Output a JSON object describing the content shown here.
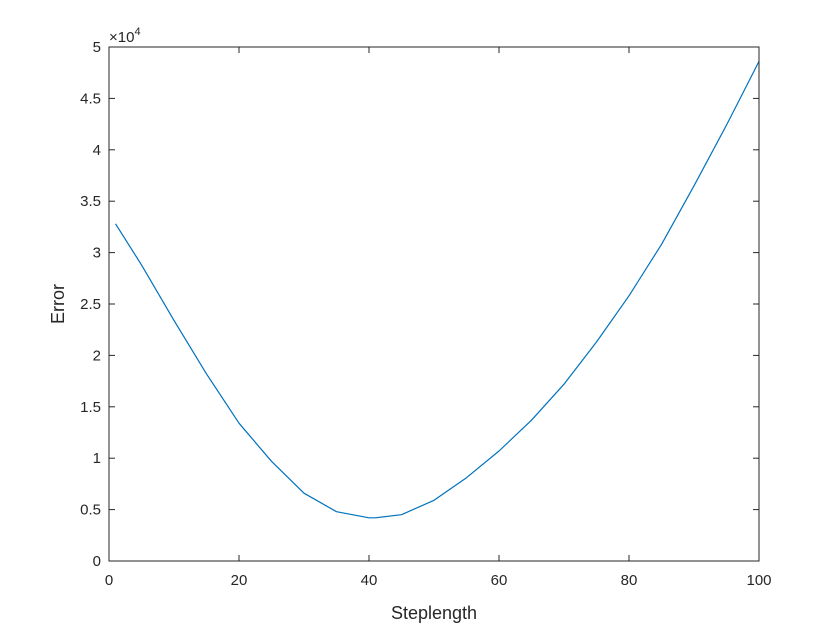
{
  "chart_data": {
    "type": "line",
    "title": "",
    "xlabel": "Steplength",
    "ylabel": "Error",
    "xlim": [
      0,
      100
    ],
    "ylim": [
      0,
      5
    ],
    "y_multiplier": "×10",
    "y_multiplier_exponent": "4",
    "xticks": [
      0,
      20,
      40,
      60,
      80,
      100
    ],
    "xtick_labels": [
      "0",
      "20",
      "40",
      "60",
      "80",
      "100"
    ],
    "yticks": [
      0,
      0.5,
      1,
      1.5,
      2,
      2.5,
      3,
      3.5,
      4,
      4.5,
      5
    ],
    "ytick_labels": [
      "0",
      "0.5",
      "1",
      "1.5",
      "2",
      "2.5",
      "3",
      "3.5",
      "4",
      "4.5",
      "5"
    ],
    "grid": false,
    "legend": "none",
    "box": true,
    "series": [
      {
        "color": "#0072bd",
        "x": [
          1,
          5,
          10,
          15,
          20,
          25,
          30,
          35,
          40,
          41,
          45,
          50,
          55,
          60,
          65,
          70,
          75,
          80,
          85,
          90,
          95,
          100
        ],
        "y": [
          3.28,
          2.88,
          2.34,
          1.82,
          1.34,
          0.97,
          0.66,
          0.48,
          0.42,
          0.42,
          0.45,
          0.59,
          0.81,
          1.07,
          1.37,
          1.72,
          2.13,
          2.58,
          3.08,
          3.65,
          4.24,
          4.86
        ]
      }
    ]
  }
}
